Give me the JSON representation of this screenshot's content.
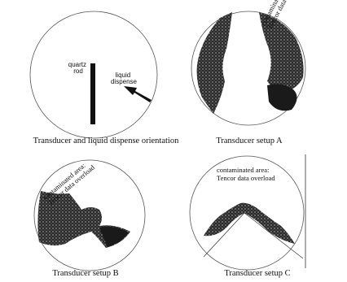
{
  "panel_1": {
    "quartz_label": [
      "quartz",
      "rod"
    ],
    "dispense_label": [
      "liquid",
      "dispense"
    ],
    "caption": "Transducer and liquid dispense orientation"
  },
  "panel_a": {
    "annotation": [
      "contaminated and",
      "Tencor data overload"
    ],
    "caption": "Transducer setup A"
  },
  "panel_b": {
    "annotation": [
      "contaminated area:",
      "Tencor data overload"
    ],
    "caption": "Transducer setup B"
  },
  "panel_c": {
    "annotation": [
      "contaminated area:",
      "Tencor data overload"
    ],
    "caption": "Transducer setup C"
  }
}
